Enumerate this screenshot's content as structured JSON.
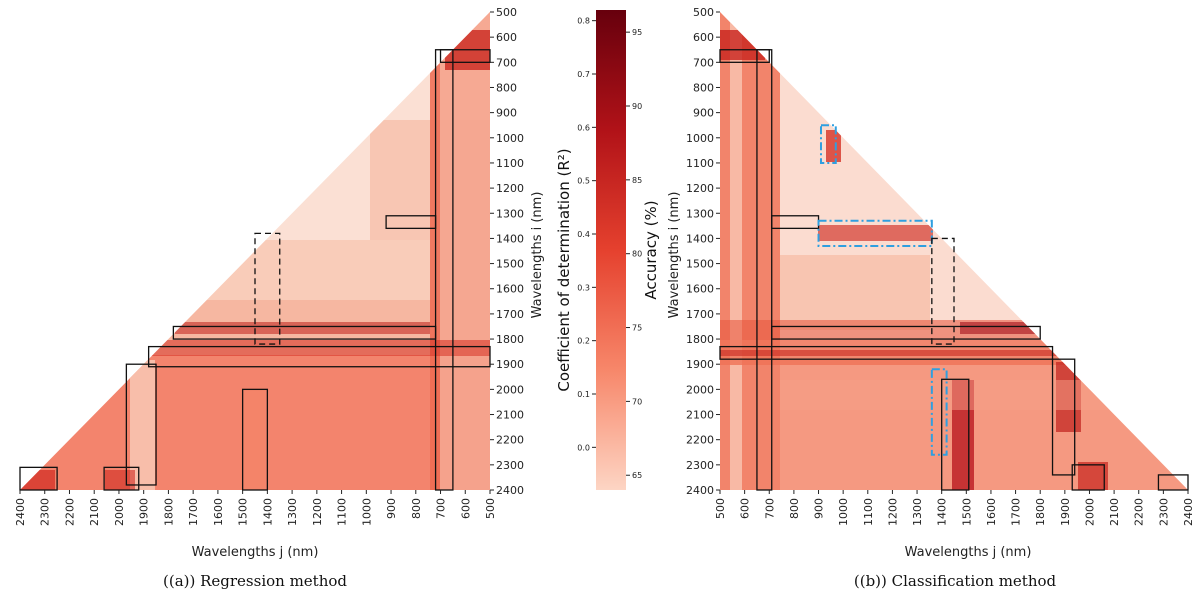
{
  "chart_data": [
    {
      "type": "heatmap",
      "caption": "((a)) Regression method",
      "xlabel": "Wavelengths j (nm)",
      "ylabel": "Wavelengths i (nm)",
      "x_ticks": [
        2400,
        2300,
        2200,
        2100,
        2000,
        1900,
        1800,
        1700,
        1600,
        1500,
        1400,
        1300,
        1200,
        1100,
        1000,
        900,
        800,
        700,
        600,
        500
      ],
      "y_ticks": [
        500,
        600,
        700,
        800,
        900,
        1000,
        1100,
        1200,
        1300,
        1400,
        1500,
        1600,
        1700,
        1800,
        1900,
        2000,
        2100,
        2200,
        2300,
        2400
      ],
      "x_direction": "descending",
      "range_nm": [
        500,
        2400
      ],
      "triangle": "upper-left",
      "grid": false,
      "highlighted_regions": [
        {
          "i": [
            650,
            2400
          ],
          "j": [
            650,
            720
          ],
          "style": "solid"
        },
        {
          "i": [
            650,
            700
          ],
          "j": [
            500,
            700
          ],
          "style": "solid"
        },
        {
          "i": [
            1310,
            1360
          ],
          "j": [
            720,
            920
          ],
          "style": "solid"
        },
        {
          "i": [
            1380,
            1820
          ],
          "j": [
            1350,
            1450
          ],
          "style": "dashed"
        },
        {
          "i": [
            1750,
            1800
          ],
          "j": [
            720,
            1780
          ],
          "style": "solid"
        },
        {
          "i": [
            1830,
            1910
          ],
          "j": [
            500,
            1880
          ],
          "style": "solid"
        },
        {
          "i": [
            1900,
            2380
          ],
          "j": [
            1850,
            1970
          ],
          "style": "solid"
        },
        {
          "i": [
            2000,
            2400
          ],
          "j": [
            1400,
            1500
          ],
          "style": "solid"
        },
        {
          "i": [
            2310,
            2400
          ],
          "j": [
            2250,
            2400
          ],
          "style": "solid"
        },
        {
          "i": [
            2310,
            2400
          ],
          "j": [
            1920,
            2060
          ],
          "style": "solid"
        }
      ]
    },
    {
      "type": "colorbar",
      "left_label": "Coefficient of determination (R²)",
      "right_label": "Accuracy (%)",
      "left_range": [
        -0.08,
        0.82
      ],
      "left_ticks": [
        0.0,
        0.1,
        0.2,
        0.3,
        0.4,
        0.5,
        0.6,
        0.7,
        0.8
      ],
      "right_range": [
        64,
        96.5
      ],
      "right_ticks": [
        65,
        70,
        75,
        80,
        85,
        90,
        95
      ],
      "colors": {
        "low": "#fdd5c4",
        "mid": "#e5412e",
        "high": "#67000d"
      }
    },
    {
      "type": "heatmap",
      "caption": "((b)) Classification method",
      "xlabel": "Wavelengths j (nm)",
      "ylabel": "Wavelengths i (nm)",
      "x_ticks": [
        500,
        600,
        700,
        800,
        900,
        1000,
        1100,
        1200,
        1300,
        1400,
        1500,
        1600,
        1700,
        1800,
        1900,
        2000,
        2100,
        2200,
        2300,
        2400
      ],
      "y_ticks": [
        500,
        600,
        700,
        800,
        900,
        1000,
        1100,
        1200,
        1300,
        1400,
        1500,
        1600,
        1700,
        1800,
        1900,
        2000,
        2100,
        2200,
        2300,
        2400
      ],
      "x_direction": "ascending",
      "range_nm": [
        500,
        2400
      ],
      "triangle": "upper-right",
      "grid": false,
      "highlighted_regions": [
        {
          "i": [
            650,
            700
          ],
          "j": [
            500,
            700
          ],
          "style": "solid"
        },
        {
          "i": [
            650,
            2400
          ],
          "j": [
            650,
            710
          ],
          "style": "solid"
        },
        {
          "i": [
            1310,
            1360
          ],
          "j": [
            710,
            900
          ],
          "style": "solid"
        },
        {
          "i": [
            950,
            1100
          ],
          "j": [
            910,
            970
          ],
          "style": "dashdot-blue"
        },
        {
          "i": [
            1330,
            1430
          ],
          "j": [
            900,
            1360
          ],
          "style": "dashdot-blue"
        },
        {
          "i": [
            1400,
            1820
          ],
          "j": [
            1360,
            1450
          ],
          "style": "dashed"
        },
        {
          "i": [
            1750,
            1800
          ],
          "j": [
            710,
            1800
          ],
          "style": "solid"
        },
        {
          "i": [
            1830,
            1880
          ],
          "j": [
            500,
            1850
          ],
          "style": "solid"
        },
        {
          "i": [
            1880,
            2340
          ],
          "j": [
            1850,
            1940
          ],
          "style": "solid"
        },
        {
          "i": [
            1920,
            2260
          ],
          "j": [
            1360,
            1420
          ],
          "style": "dashdot-blue"
        },
        {
          "i": [
            1960,
            2400
          ],
          "j": [
            1400,
            1510
          ],
          "style": "solid"
        },
        {
          "i": [
            2300,
            2400
          ],
          "j": [
            1930,
            2060
          ],
          "style": "solid"
        },
        {
          "i": [
            2340,
            2400
          ],
          "j": [
            2280,
            2400
          ],
          "style": "solid"
        }
      ]
    }
  ]
}
